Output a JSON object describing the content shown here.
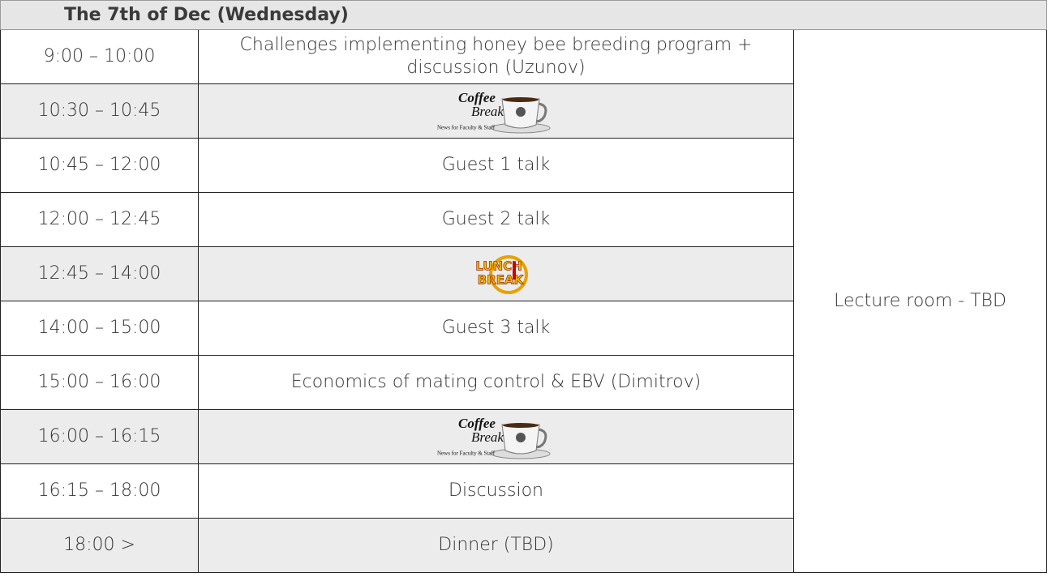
{
  "header": {
    "title": "The 7th of Dec (Wednesday)"
  },
  "table": {
    "room": "Lecture room - TBD",
    "rows": [
      {
        "time": "9:00 – 10:00",
        "event": "Challenges implementing honey bee breeding program + discussion (Uzunov)",
        "shaded": false
      },
      {
        "time": "10:30 – 10:45",
        "logo": {
          "kind": "coffee",
          "lines": [
            "Coffee",
            "Break",
            "News for Faculty & Staff"
          ]
        },
        "shaded": true
      },
      {
        "time": "10:45 – 12:00",
        "event": "Guest 1 talk",
        "shaded": false
      },
      {
        "time": "12:00 – 12:45",
        "event": "Guest 2 talk",
        "shaded": false
      },
      {
        "time": "12:45 – 14:00",
        "logo": {
          "kind": "lunch",
          "lines": [
            "LUNCH",
            "BREAK"
          ]
        },
        "shaded": true
      },
      {
        "time": "14:00 – 15:00",
        "event": "Guest 3 talk",
        "shaded": false
      },
      {
        "time": "15:00 – 16:00",
        "event": "Economics of mating control & EBV (Dimitrov)",
        "shaded": false
      },
      {
        "time": "16:00 – 16:15",
        "logo": {
          "kind": "coffee",
          "lines": [
            "Coffee",
            "Break",
            "News for Faculty & Staff"
          ]
        },
        "shaded": true
      },
      {
        "time": "16:15 – 18:00",
        "event": "Discussion",
        "shaded": false
      },
      {
        "time": "18:00 >",
        "event": "Dinner (TBD)",
        "shaded": true
      }
    ]
  }
}
